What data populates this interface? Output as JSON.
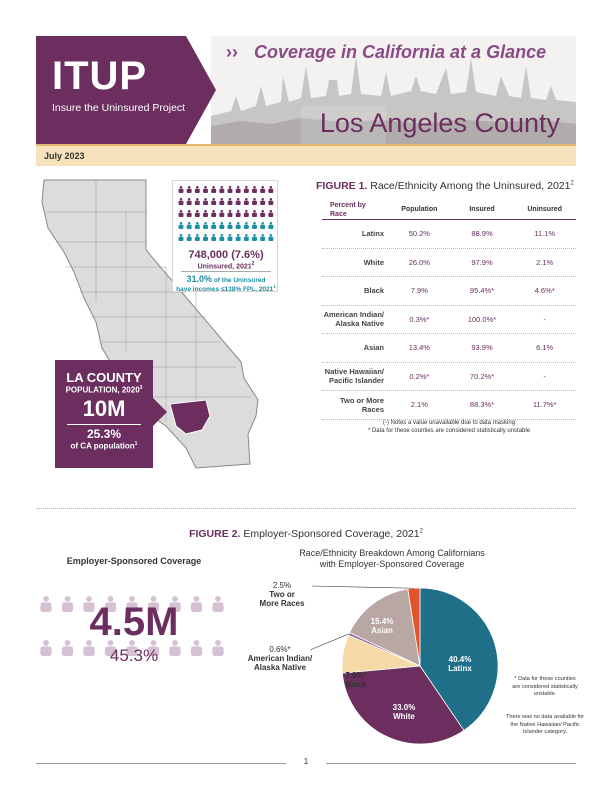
{
  "header": {
    "logo_text": "ITUP",
    "logo_sub": "Insure the Uninsured Project",
    "chevrons": "››",
    "subtitle": "Coverage in California at a Glance",
    "county_title": "Los Angeles County",
    "date": "July 2023",
    "colors": {
      "primary": "#6b2e5f",
      "accent": "#8a4a86",
      "teal": "#1b8ea3",
      "date_bar": "#f7e3bb"
    }
  },
  "map": {
    "county_name": "LA COUNTY",
    "pop_label": "POPULATION, 2020",
    "pop_sup": "3",
    "pop_value": "10M",
    "pct_value": "25.3%",
    "pct_label": "of CA population",
    "pct_sup": "1"
  },
  "people_card": {
    "uninsured_num": "748,000 (7.6%)",
    "uninsured_label": "Uninsured, 2021",
    "uninsured_sup": "2",
    "fpl_value": "31.0%",
    "fpl_line1_rest": " of the Uninsured",
    "fpl_line2": "have incomes ≤138% FPL, 2021",
    "fpl_sup": "1",
    "icons": {
      "purple_count": 36,
      "teal_count": 24,
      "per_row": 12
    }
  },
  "figure1": {
    "label": "FIGURE 1.",
    "title": " Race/Ethnicity Among the Uninsured, 2021",
    "title_sup": "2",
    "headers": [
      "Percent by Race",
      "Population",
      "Insured",
      "Uninsured"
    ],
    "rows": [
      {
        "label": "Latinx",
        "population": "50.2%",
        "insured": "88.9%",
        "uninsured": "11.1%"
      },
      {
        "label": "White",
        "population": "26.0%",
        "insured": "97.9%",
        "uninsured": "2.1%"
      },
      {
        "label": "Black",
        "population": "7.9%",
        "insured": "95.4%*",
        "uninsured": "4.6%*"
      },
      {
        "label": "American Indian/ Alaska Native",
        "population": "0.3%*",
        "insured": "100.0%*",
        "uninsured": "-"
      },
      {
        "label": "Asian",
        "population": "13.4%",
        "insured": "93.9%",
        "uninsured": "6.1%"
      },
      {
        "label": "Native Hawaiian/ Pacific Islander",
        "population": "0.2%*",
        "insured": "70.2%*",
        "uninsured": "-"
      },
      {
        "label": "Two or More Races",
        "population": "2.1%",
        "insured": "88.3%*",
        "uninsured": "11.7%*"
      }
    ],
    "note1": "(-) Notes a value unavailable due to data masking",
    "note2": "* Data for these counties are considered statistically unstable"
  },
  "figure2": {
    "label": "FIGURE 2.",
    "title": " Employer-Sponsored Coverage, 2021",
    "title_sup": "2",
    "esc_label": "Employer-Sponsored Coverage",
    "esc_num": "4.5M",
    "esc_pct": "45.3%",
    "pie_title1": "Race/Ethnicity Breakdown Among Californians",
    "pie_title2": "with Employer-Sponsored Coverage",
    "note1": "* Data for these counties are considered statistically unstable.",
    "note2": "There was no data available for the Native Hawaiian/ Pacific Islander category."
  },
  "chart_data": {
    "type": "pie",
    "title": "Race/Ethnicity Breakdown Among Californians with Employer-Sponsored Coverage",
    "slices": [
      {
        "name": "Latinx",
        "value": 40.4,
        "label": "40.4%",
        "color": "#1e6f87"
      },
      {
        "name": "White",
        "value": 33.0,
        "label": "33.0%",
        "color": "#6b2e5f"
      },
      {
        "name": "Black",
        "value": 7.9,
        "label": "7.9%*",
        "color": "#f5d9a6"
      },
      {
        "name": "American Indian/ Alaska Native",
        "value": 0.6,
        "label": "0.6%*",
        "color": "#9b6aa6"
      },
      {
        "name": "Asian",
        "value": 15.4,
        "label": "15.4%",
        "color": "#b8a7a3"
      },
      {
        "name": "Two or More Races",
        "value": 2.5,
        "label": "2.5%",
        "color": "#e2532b"
      }
    ]
  },
  "footer": {
    "page": "1"
  }
}
